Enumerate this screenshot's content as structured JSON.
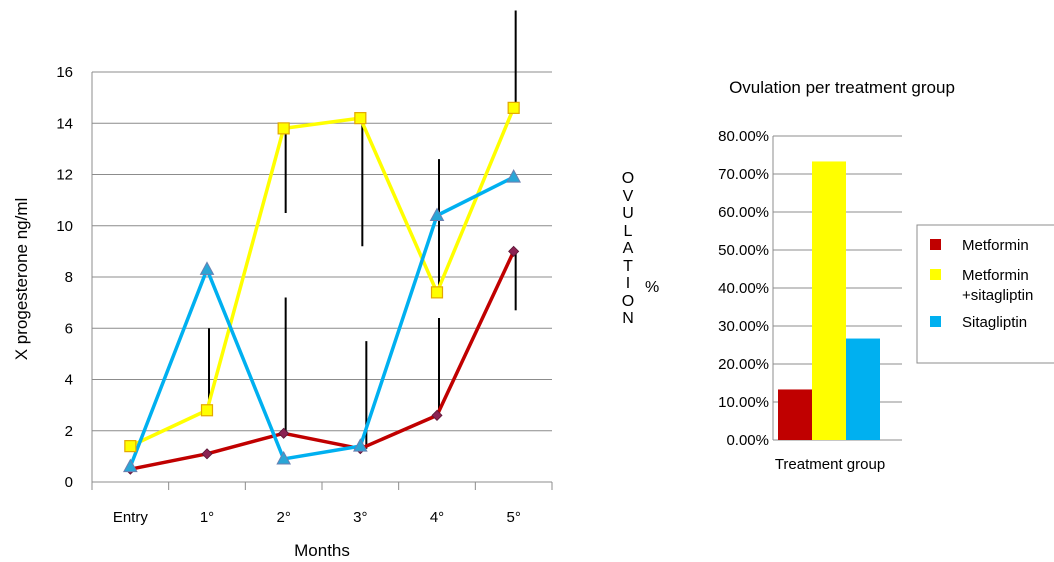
{
  "chart_data": [
    {
      "type": "line",
      "title": "",
      "xlabel": "Months",
      "ylabel": "X progesterone ng/ml",
      "categories": [
        "Entry",
        "1°",
        "2°",
        "3°",
        "4°",
        "5°"
      ],
      "ylim": [
        0,
        16
      ],
      "yticks": [
        "0",
        "2",
        "4",
        "6",
        "8",
        "10",
        "12",
        "14",
        "16"
      ],
      "grid": "horizontal",
      "series": [
        {
          "name": "Metformin",
          "color": "#c00000",
          "marker": "diamond",
          "values": [
            0.5,
            1.1,
            1.9,
            1.3,
            2.6,
            9.0
          ],
          "error_bar_ends": [
            null,
            null,
            7.2,
            5.5,
            6.4,
            6.7
          ]
        },
        {
          "name": "Metformin +sitagliptin",
          "color": "#ffff00",
          "marker": "square",
          "values": [
            1.4,
            2.8,
            13.8,
            14.2,
            7.4,
            14.6
          ],
          "error_bar_ends": [
            null,
            6.0,
            10.5,
            9.2,
            12.6,
            18.4
          ]
        },
        {
          "name": "Sitagliptin",
          "color": "#00b0f0",
          "marker": "triangle",
          "values": [
            0.6,
            8.3,
            0.9,
            1.4,
            10.4,
            11.9
          ],
          "error_bar_ends": [
            null,
            null,
            null,
            null,
            null,
            null
          ]
        }
      ]
    },
    {
      "type": "bar",
      "title": "Ovulation per treatment group",
      "xlabel": "Treatment group",
      "ylabel_vertical": [
        "O",
        "V",
        "U",
        "L",
        "A",
        "T",
        "I",
        "O",
        "N"
      ],
      "ylabel_unit": "%",
      "ylim": [
        0,
        0.8
      ],
      "yticks": [
        "0.00%",
        "10.00%",
        "20.00%",
        "30.00%",
        "40.00%",
        "50.00%",
        "60.00%",
        "70.00%",
        "80.00%"
      ],
      "grid": "horizontal",
      "legend_position": "right",
      "series": [
        {
          "name": "Metformin",
          "color": "#c00000",
          "value": 0.133
        },
        {
          "name": "Metformin\n+sitagliptin",
          "color": "#ffff00",
          "value": 0.733
        },
        {
          "name": "Sitagliptin",
          "color": "#00b0f0",
          "value": 0.267
        }
      ],
      "legend": [
        {
          "line1": "Metformin",
          "line2": "",
          "color": "#c00000"
        },
        {
          "line1": "Metformin",
          "line2": "+sitagliptin",
          "color": "#ffff00"
        },
        {
          "line1": "Sitagliptin",
          "line2": "",
          "color": "#00b0f0"
        }
      ]
    }
  ]
}
